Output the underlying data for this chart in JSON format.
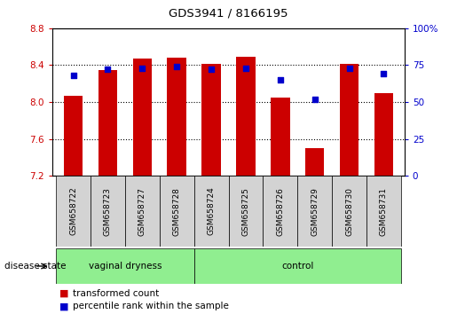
{
  "title": "GDS3941 / 8166195",
  "samples": [
    "GSM658722",
    "GSM658723",
    "GSM658727",
    "GSM658728",
    "GSM658724",
    "GSM658725",
    "GSM658726",
    "GSM658729",
    "GSM658730",
    "GSM658731"
  ],
  "transformed_count": [
    8.07,
    8.35,
    8.47,
    8.48,
    8.41,
    8.49,
    8.05,
    7.5,
    8.41,
    8.1
  ],
  "percentile_rank": [
    68,
    72,
    73,
    74,
    72,
    73,
    65,
    52,
    73,
    69
  ],
  "groups": [
    {
      "label": "vaginal dryness",
      "start": 0,
      "end": 3
    },
    {
      "label": "control",
      "start": 4,
      "end": 9
    }
  ],
  "bar_color": "#CC0000",
  "dot_color": "#0000CC",
  "ylim_left": [
    7.2,
    8.8
  ],
  "ylim_right": [
    0,
    100
  ],
  "yticks_left": [
    7.2,
    7.6,
    8.0,
    8.4,
    8.8
  ],
  "yticks_right": [
    0,
    25,
    50,
    75,
    100
  ],
  "bar_bottom": 7.2,
  "tick_label_color_left": "#CC0000",
  "tick_label_color_right": "#0000CC",
  "disease_state_label": "disease state",
  "legend_items": [
    "transformed count",
    "percentile rank within the sample"
  ],
  "legend_colors": [
    "#CC0000",
    "#0000CC"
  ],
  "sample_box_color": "#D3D3D3",
  "group_box_color": "#90EE90",
  "plot_bg": "#FFFFFF"
}
